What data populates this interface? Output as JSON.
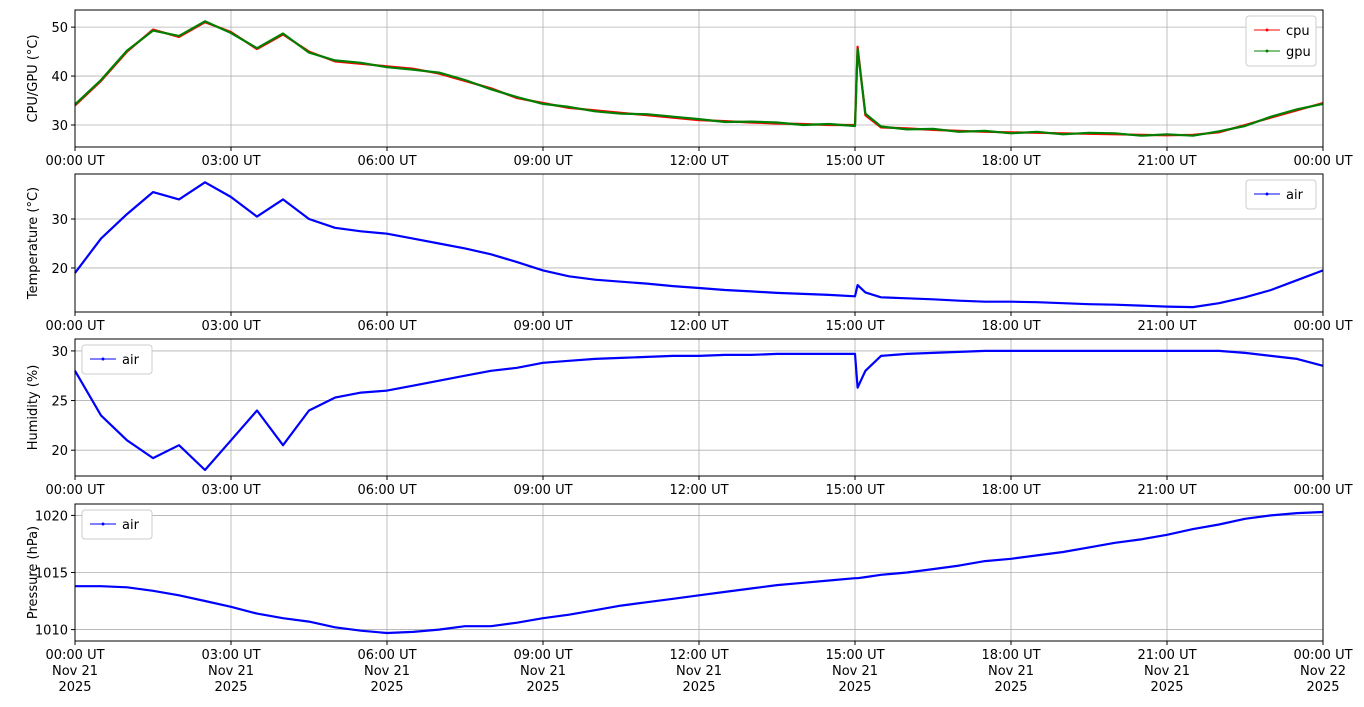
{
  "chart_data": [
    {
      "type": "line",
      "ylabel": "CPU/GPU (°C)",
      "x": [
        0,
        0.5,
        1,
        1.5,
        2,
        2.5,
        3,
        3.5,
        4,
        4.5,
        5,
        5.5,
        6,
        6.5,
        7,
        7.5,
        8,
        8.5,
        9,
        9.5,
        10,
        10.5,
        11,
        11.5,
        12,
        12.5,
        13,
        13.5,
        14,
        14.5,
        15,
        15.05,
        15.2,
        15.5,
        16,
        16.5,
        17,
        17.5,
        18,
        18.5,
        19,
        19.5,
        20,
        20.5,
        21,
        21.5,
        22,
        22.5,
        23,
        23.5,
        24
      ],
      "series": [
        {
          "name": "cpu",
          "color": "#ff0000",
          "values": [
            34,
            39,
            45,
            49.5,
            48,
            51,
            49,
            45.5,
            48.5,
            45,
            43,
            42.5,
            42,
            41.5,
            40.5,
            39,
            37.5,
            35.5,
            34.5,
            33.5,
            33,
            32.5,
            32,
            31.5,
            31,
            30.8,
            30.5,
            30.3,
            30.2,
            30,
            30,
            46,
            32,
            29.5,
            29.3,
            29,
            28.8,
            28.6,
            28.5,
            28.4,
            28.3,
            28.2,
            28.1,
            28,
            27.9,
            28,
            28.5,
            30,
            31.5,
            33,
            34.5
          ]
        },
        {
          "name": "gpu",
          "color": "#008000",
          "values": [
            34.2,
            39.2,
            45.2,
            49.3,
            48.2,
            51.2,
            48.8,
            45.7,
            48.7,
            44.8,
            43.2,
            42.7,
            41.8,
            41.3,
            40.7,
            39.2,
            37.3,
            35.7,
            34.3,
            33.7,
            32.8,
            32.3,
            32.2,
            31.7,
            31.2,
            30.6,
            30.7,
            30.5,
            30,
            30.2,
            29.8,
            45.5,
            32.3,
            29.7,
            29.1,
            29.2,
            28.6,
            28.8,
            28.3,
            28.6,
            28.1,
            28.4,
            28.3,
            27.8,
            28.1,
            27.8,
            28.7,
            29.8,
            31.7,
            33.2,
            34.3
          ]
        }
      ],
      "xlim": [
        0,
        24
      ],
      "xticks": [
        {
          "value": 0,
          "label": "00:00 UT"
        },
        {
          "value": 3,
          "label": "03:00 UT"
        },
        {
          "value": 6,
          "label": "06:00 UT"
        },
        {
          "value": 9,
          "label": "09:00 UT"
        },
        {
          "value": 12,
          "label": "12:00 UT"
        },
        {
          "value": 15,
          "label": "15:00 UT"
        },
        {
          "value": 18,
          "label": "18:00 UT"
        },
        {
          "value": 21,
          "label": "21:00 UT"
        },
        {
          "value": 24,
          "label": "00:00 UT"
        }
      ],
      "ylim": [
        25.5,
        53.5
      ],
      "yticks": [
        30,
        40,
        50
      ],
      "grid": true,
      "legend": "upper right"
    },
    {
      "type": "line",
      "ylabel": "Temperature (°C)",
      "x": [
        0,
        0.5,
        1,
        1.5,
        2,
        2.5,
        3,
        3.5,
        4,
        4.5,
        5,
        5.5,
        6,
        6.5,
        7,
        7.5,
        8,
        8.5,
        9,
        9.5,
        10,
        10.5,
        11,
        11.5,
        12,
        12.5,
        13,
        13.5,
        14,
        14.5,
        15,
        15.05,
        15.2,
        15.5,
        16,
        16.5,
        17,
        17.5,
        18,
        18.5,
        19,
        19.5,
        20,
        20.5,
        21,
        21.5,
        22,
        22.5,
        23,
        23.5,
        24
      ],
      "series": [
        {
          "name": "air",
          "color": "#0000ff",
          "values": [
            19,
            26,
            31,
            35.5,
            34,
            37.5,
            34.5,
            30.5,
            34,
            30,
            28.2,
            27.5,
            27,
            26,
            25,
            24,
            22.8,
            21.2,
            19.5,
            18.3,
            17.6,
            17.2,
            16.8,
            16.3,
            15.9,
            15.5,
            15.2,
            14.9,
            14.7,
            14.5,
            14.2,
            16.5,
            15,
            14,
            13.8,
            13.6,
            13.3,
            13.1,
            13.1,
            13,
            12.8,
            12.6,
            12.5,
            12.3,
            12.1,
            12,
            12.8,
            14,
            15.5,
            17.5,
            19.5
          ]
        }
      ],
      "xlim": [
        0,
        24
      ],
      "xticks": [
        {
          "value": 0,
          "label": "00:00 UT"
        },
        {
          "value": 3,
          "label": "03:00 UT"
        },
        {
          "value": 6,
          "label": "06:00 UT"
        },
        {
          "value": 9,
          "label": "09:00 UT"
        },
        {
          "value": 12,
          "label": "12:00 UT"
        },
        {
          "value": 15,
          "label": "15:00 UT"
        },
        {
          "value": 18,
          "label": "18:00 UT"
        },
        {
          "value": 21,
          "label": "21:00 UT"
        },
        {
          "value": 24,
          "label": "00:00 UT"
        }
      ],
      "ylim": [
        11,
        39.2
      ],
      "yticks": [
        20,
        30
      ],
      "grid": true,
      "legend": "upper right"
    },
    {
      "type": "line",
      "ylabel": "Humidity (%)",
      "x": [
        0,
        0.5,
        1,
        1.5,
        2,
        2.5,
        3,
        3.5,
        4,
        4.5,
        5,
        5.5,
        6,
        6.5,
        7,
        7.5,
        8,
        8.5,
        9,
        9.5,
        10,
        10.5,
        11,
        11.5,
        12,
        12.5,
        13,
        13.5,
        14,
        14.5,
        15,
        15.05,
        15.2,
        15.5,
        16,
        16.5,
        17,
        17.5,
        18,
        18.5,
        19,
        19.5,
        20,
        20.5,
        21,
        21.5,
        22,
        22.5,
        23,
        23.5,
        24
      ],
      "series": [
        {
          "name": "air",
          "color": "#0000ff",
          "values": [
            28,
            23.5,
            21,
            19.2,
            20.5,
            18,
            21,
            24,
            20.5,
            24,
            25.3,
            25.8,
            26,
            26.5,
            27,
            27.5,
            28,
            28.3,
            28.8,
            29,
            29.2,
            29.3,
            29.4,
            29.5,
            29.5,
            29.6,
            29.6,
            29.7,
            29.7,
            29.7,
            29.7,
            26.3,
            28,
            29.5,
            29.7,
            29.8,
            29.9,
            30,
            30,
            30,
            30,
            30,
            30,
            30,
            30,
            30,
            30,
            29.8,
            29.5,
            29.2,
            28.5
          ]
        }
      ],
      "xlim": [
        0,
        24
      ],
      "xticks": [
        {
          "value": 0,
          "label": "00:00 UT"
        },
        {
          "value": 3,
          "label": "03:00 UT"
        },
        {
          "value": 6,
          "label": "06:00 UT"
        },
        {
          "value": 9,
          "label": "09:00 UT"
        },
        {
          "value": 12,
          "label": "12:00 UT"
        },
        {
          "value": 15,
          "label": "15:00 UT"
        },
        {
          "value": 18,
          "label": "18:00 UT"
        },
        {
          "value": 21,
          "label": "21:00 UT"
        },
        {
          "value": 24,
          "label": "00:00 UT"
        }
      ],
      "ylim": [
        17.4,
        31.2
      ],
      "yticks": [
        20,
        25,
        30
      ],
      "grid": true,
      "legend": "upper left"
    },
    {
      "type": "line",
      "ylabel": "Pressure (hPa)",
      "x": [
        0,
        0.5,
        1,
        1.5,
        2,
        2.5,
        3,
        3.5,
        4,
        4.5,
        5,
        5.5,
        6,
        6.5,
        7,
        7.5,
        8,
        8.5,
        9,
        9.5,
        10,
        10.5,
        11,
        11.5,
        12,
        12.5,
        13,
        13.5,
        14,
        14.5,
        15,
        15.05,
        15.2,
        15.5,
        16,
        16.5,
        17,
        17.5,
        18,
        18.5,
        19,
        19.5,
        20,
        20.5,
        21,
        21.5,
        22,
        22.5,
        23,
        23.5,
        24
      ],
      "series": [
        {
          "name": "air",
          "color": "#0000ff",
          "values": [
            1013.8,
            1013.8,
            1013.7,
            1013.4,
            1013,
            1012.5,
            1012,
            1011.4,
            1011,
            1010.7,
            1010.2,
            1009.9,
            1009.7,
            1009.8,
            1010,
            1010.3,
            1010.3,
            1010.6,
            1011,
            1011.3,
            1011.7,
            1012.1,
            1012.4,
            1012.7,
            1013,
            1013.3,
            1013.6,
            1013.9,
            1014.1,
            1014.3,
            1014.5,
            1014.5,
            1014.6,
            1014.8,
            1015,
            1015.3,
            1015.6,
            1016,
            1016.2,
            1016.5,
            1016.8,
            1017.2,
            1017.6,
            1017.9,
            1018.3,
            1018.8,
            1019.2,
            1019.7,
            1020,
            1020.2,
            1020.3
          ]
        }
      ],
      "xlim": [
        0,
        24
      ],
      "xticks": [
        {
          "value": 0,
          "label": "00:00 UT\nNov 21\n2025"
        },
        {
          "value": 3,
          "label": "03:00 UT\nNov 21\n2025"
        },
        {
          "value": 6,
          "label": "06:00 UT\nNov 21\n2025"
        },
        {
          "value": 9,
          "label": "09:00 UT\nNov 21\n2025"
        },
        {
          "value": 12,
          "label": "12:00 UT\nNov 21\n2025"
        },
        {
          "value": 15,
          "label": "15:00 UT\nNov 21\n2025"
        },
        {
          "value": 18,
          "label": "18:00 UT\nNov 21\n2025"
        },
        {
          "value": 21,
          "label": "21:00 UT\nNov 21\n2025"
        },
        {
          "value": 24,
          "label": "00:00 UT\nNov 22\n2025"
        }
      ],
      "ylim": [
        1009,
        1021
      ],
      "yticks": [
        1010,
        1015,
        1020
      ],
      "grid": true,
      "legend": "upper left"
    }
  ]
}
